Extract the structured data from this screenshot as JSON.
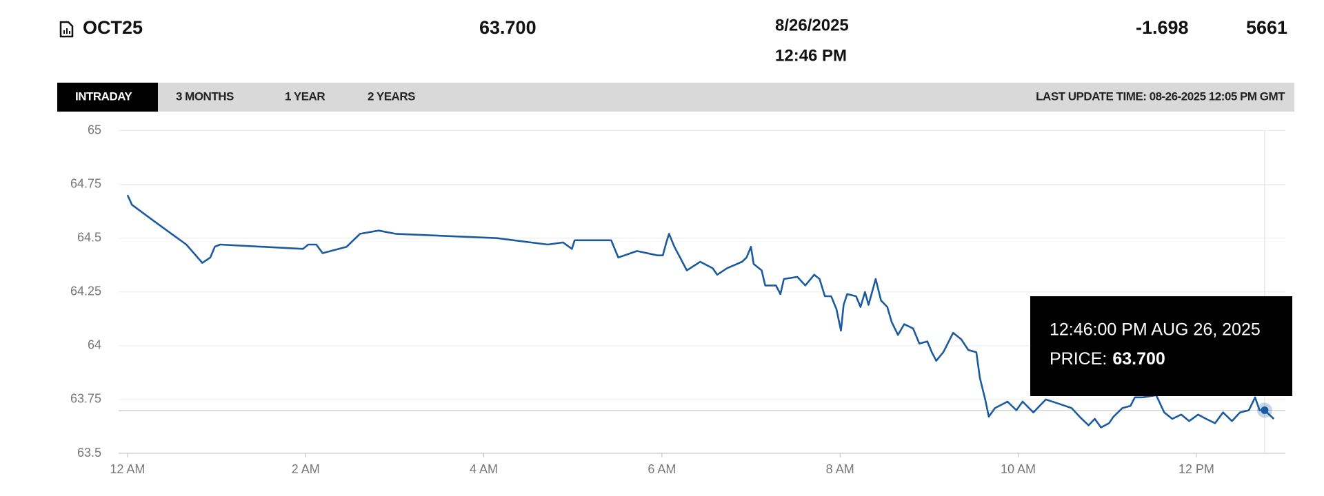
{
  "header": {
    "symbol": "OCT25",
    "price": "63.700",
    "date": "8/26/2025",
    "time": "12:46 PM",
    "change": "-1.698",
    "volume": "5661"
  },
  "tabs": [
    "INTRADAY",
    "3 MONTHS",
    "1 YEAR",
    "2 YEARS"
  ],
  "last_update": "LAST UPDATE TIME: 08-26-2025 12:05 PM GMT",
  "chart_data": {
    "type": "line",
    "color": "#1b5a9e",
    "x": [
      0,
      0.05,
      0.31,
      0.66,
      0.84,
      0.93,
      0.98,
      1.04,
      1.97,
      2.03,
      2.12,
      2.19,
      2.46,
      2.61,
      2.82,
      3.01,
      4.15,
      4.72,
      4.89,
      4.99,
      5.02,
      5.43,
      5.51,
      5.72,
      5.95,
      6.01,
      6.05,
      6.08,
      6.14,
      6.28,
      6.43,
      6.57,
      6.62,
      6.73,
      6.9,
      6.95,
      7.0,
      7.03,
      7.12,
      7.16,
      7.28,
      7.33,
      7.37,
      7.52,
      7.61,
      7.71,
      7.77,
      7.83,
      7.9,
      7.96,
      8.01,
      8.04,
      8.08,
      8.18,
      8.23,
      8.28,
      8.32,
      8.4,
      8.46,
      8.53,
      8.58,
      8.65,
      8.72,
      8.82,
      8.89,
      8.98,
      9.03,
      9.08,
      9.16,
      9.27,
      9.36,
      9.44,
      9.53,
      9.57,
      9.63,
      9.67,
      9.74,
      9.88,
      9.98,
      10.05,
      10.17,
      10.31,
      10.46,
      10.6,
      10.69,
      10.79,
      10.86,
      10.93,
      11.02,
      11.07,
      11.17,
      11.26,
      11.31,
      11.4,
      11.55,
      11.64,
      11.73,
      11.83,
      11.92,
      12.02,
      12.11,
      12.21,
      12.3,
      12.4,
      12.49,
      12.59,
      12.66,
      12.71,
      12.767,
      12.87
    ],
    "values": [
      64.7,
      64.655,
      64.575,
      64.47,
      64.385,
      64.41,
      64.46,
      64.47,
      64.45,
      64.47,
      64.47,
      64.43,
      64.46,
      64.52,
      64.535,
      64.52,
      64.5,
      64.47,
      64.48,
      64.45,
      64.49,
      64.49,
      64.41,
      64.44,
      64.42,
      64.42,
      64.48,
      64.52,
      64.46,
      64.35,
      64.39,
      64.36,
      64.33,
      64.36,
      64.39,
      64.41,
      64.46,
      64.38,
      64.35,
      64.28,
      64.28,
      64.24,
      64.31,
      64.32,
      64.28,
      64.33,
      64.31,
      64.23,
      64.23,
      64.17,
      64.07,
      64.19,
      64.24,
      64.23,
      64.18,
      64.25,
      64.19,
      64.31,
      64.21,
      64.18,
      64.11,
      64.05,
      64.1,
      64.08,
      64.01,
      64.02,
      63.97,
      63.93,
      63.97,
      64.06,
      64.03,
      63.98,
      63.97,
      63.85,
      63.75,
      63.67,
      63.71,
      63.74,
      63.7,
      63.74,
      63.69,
      63.75,
      63.73,
      63.71,
      63.67,
      63.63,
      63.66,
      63.62,
      63.64,
      63.67,
      63.71,
      63.72,
      63.76,
      63.76,
      63.77,
      63.69,
      63.66,
      63.68,
      63.65,
      63.68,
      63.66,
      63.64,
      63.69,
      63.65,
      63.69,
      63.7,
      63.76,
      63.7,
      63.7,
      63.66
    ],
    "xlim": [
      -0.1,
      13
    ],
    "xticks": [
      {
        "value": 0,
        "label": "12 AM"
      },
      {
        "value": 2,
        "label": "2 AM"
      },
      {
        "value": 4,
        "label": "4 AM"
      },
      {
        "value": 6,
        "label": "6 AM"
      },
      {
        "value": 8,
        "label": "8 AM"
      },
      {
        "value": 10,
        "label": "10 AM"
      },
      {
        "value": 12,
        "label": "12 PM"
      }
    ],
    "ylim": [
      63.5,
      65
    ],
    "yticks": [
      63.5,
      63.75,
      64,
      64.25,
      64.5,
      64.75,
      65
    ],
    "grid": true,
    "tooltip": {
      "x": 12.767,
      "label": "12:46:00 PM AUG 26, 2025",
      "price_prefix": "PRICE:",
      "price": {
        "value": 63.7,
        "label": "63.700"
      }
    }
  }
}
